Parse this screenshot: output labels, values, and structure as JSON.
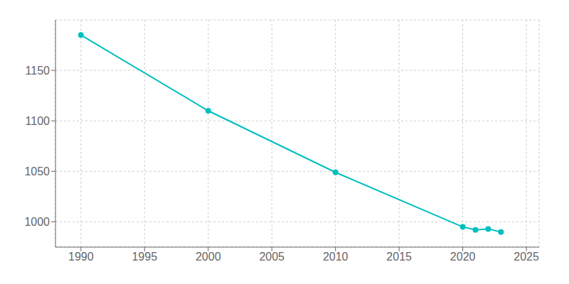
{
  "chart_data": {
    "type": "line",
    "x": [
      1990,
      2000,
      2010,
      2020,
      2021,
      2022,
      2023
    ],
    "values": [
      1185,
      1110,
      1049,
      995,
      992,
      993,
      990
    ],
    "color": "#00BFBF",
    "marker": "circle",
    "xlim": [
      1988,
      2026
    ],
    "ylim": [
      975,
      1200
    ],
    "xticks": [
      1990,
      1995,
      2000,
      2005,
      2010,
      2015,
      2020,
      2025
    ],
    "yticks": [
      1000,
      1050,
      1100,
      1150
    ],
    "grid": true
  }
}
